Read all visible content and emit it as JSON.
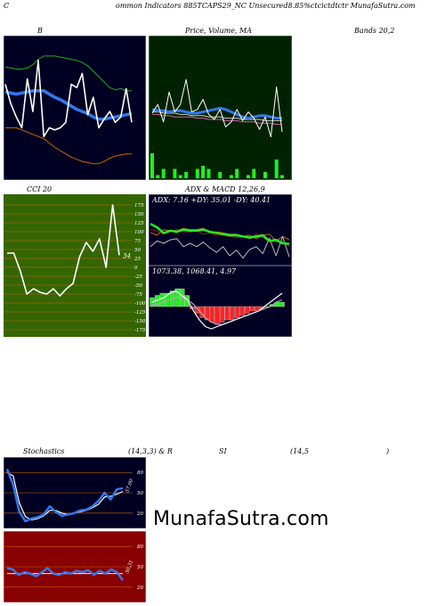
{
  "header": {
    "title": "ommon Indicators 885TCAPS29_NC Unsecured8.85%ctcictdtctr  MunafaSutra.com",
    "left_letter": "C"
  },
  "labels": {
    "bb": "B",
    "pricema": "Price, Volume, MA",
    "bands": "Bands 20,2",
    "cci": "CCI 20",
    "adx": "ADX  & MACD 12,26,9",
    "stoch": "Stochastics",
    "stoch_params": "(14,3,3) & R",
    "rsi": "SI",
    "rsi_params": "(14,5",
    "rsi_paren": ")"
  },
  "watermark": "MunafaSutra.com",
  "colors": {
    "dark_bg": "#000022",
    "green_bg": "#002200",
    "cci_bg": "#336600",
    "rsi_bg": "#880000",
    "blue": "#3377ee",
    "orange": "#cc6600",
    "green_line": "#22aa22",
    "bright_green": "#22ee22",
    "white": "#ffffff"
  },
  "chart_data": [
    {
      "type": "line",
      "name": "bollinger-bands",
      "ylim": [
        0,
        100
      ],
      "series": [
        {
          "name": "upper",
          "values": [
            86,
            85,
            84,
            84,
            85,
            88,
            93,
            96,
            96,
            96,
            95,
            94,
            93,
            92,
            90,
            87,
            82,
            77,
            72,
            67,
            65,
            66,
            64,
            64
          ]
        },
        {
          "name": "middle",
          "values": [
            63,
            62,
            61,
            62,
            63,
            64,
            64,
            64,
            61,
            58,
            56,
            53,
            50,
            47,
            45,
            43,
            40,
            38,
            38,
            39,
            40,
            41,
            42,
            43
          ]
        },
        {
          "name": "lower",
          "values": [
            30,
            30,
            30,
            28,
            26,
            24,
            22,
            20,
            16,
            12,
            9,
            6,
            3,
            1,
            -1,
            -2,
            -3,
            -3,
            -1,
            2,
            4,
            5,
            6,
            6
          ]
        },
        {
          "name": "close",
          "values": [
            70,
            52,
            40,
            30,
            75,
            45,
            92,
            22,
            30,
            28,
            30,
            35,
            70,
            67,
            80,
            42,
            58,
            30,
            38,
            45,
            35,
            40,
            66,
            35
          ]
        }
      ]
    },
    {
      "type": "line",
      "name": "price-volume-ma",
      "ylim": [
        0,
        100
      ],
      "series": [
        {
          "name": "price",
          "values": [
            45,
            52,
            38,
            62,
            46,
            52,
            72,
            46,
            48,
            56,
            44,
            40,
            48,
            34,
            38,
            48,
            39,
            46,
            41,
            32,
            42,
            26,
            66,
            30
          ]
        },
        {
          "name": "ma-blue",
          "values": [
            48,
            47,
            47,
            46,
            47,
            47,
            46,
            45,
            45,
            46,
            47,
            48,
            49,
            48,
            46,
            44,
            42,
            41,
            42,
            43,
            43,
            42,
            41,
            41
          ]
        },
        {
          "name": "ma-pink",
          "values": [
            44,
            44,
            43,
            43,
            42,
            42,
            42,
            42,
            41,
            41,
            40,
            40,
            40,
            39,
            39,
            39,
            38,
            38,
            38,
            37,
            37,
            37,
            36,
            36
          ]
        },
        {
          "name": "ma-white",
          "values": [
            46,
            46,
            45,
            45,
            45,
            44,
            44,
            43,
            43,
            43,
            42,
            42,
            42,
            41,
            41,
            41,
            40,
            40,
            40,
            40,
            39,
            39,
            39,
            39
          ]
        },
        {
          "name": "volume",
          "values": [
            8,
            1,
            3,
            0,
            3,
            1,
            2,
            0,
            3,
            4,
            3,
            0,
            2,
            0,
            1,
            3,
            0,
            1,
            3,
            0,
            2,
            0,
            6,
            1
          ]
        }
      ]
    },
    {
      "type": "line",
      "name": "cci",
      "ylim": [
        -175,
        175
      ],
      "ticks": [
        "175",
        "150",
        "125",
        "100",
        "75",
        "50",
        "25",
        "0",
        "-25",
        "-50",
        "-75",
        "-100",
        "-125",
        "-150",
        "-175"
      ],
      "series": [
        {
          "name": "cci",
          "values": [
            40,
            40,
            -10,
            -75,
            -60,
            -70,
            -75,
            -60,
            -80,
            -60,
            -45,
            30,
            70,
            45,
            80,
            0,
            175,
            34
          ]
        }
      ],
      "last_value": "34"
    },
    {
      "type": "line",
      "name": "adx",
      "series": [
        {
          "name": "adx",
          "values": [
            70,
            64,
            54,
            58,
            56,
            60,
            58,
            58,
            60,
            56,
            54,
            52,
            50,
            50,
            48,
            46,
            48,
            50,
            40,
            42,
            36,
            35
          ]
        },
        {
          "name": "plus-di",
          "values": [
            60,
            58,
            52,
            56,
            60,
            56,
            56,
            58,
            52,
            54,
            50,
            50,
            48,
            46,
            48,
            44,
            52,
            46,
            38,
            38,
            40,
            30
          ]
        },
        {
          "name": "minus-di",
          "values": [
            55,
            50,
            60,
            58,
            58,
            62,
            60,
            60,
            62,
            56,
            56,
            54,
            52,
            52,
            48,
            50,
            44,
            50,
            52,
            40,
            48,
            42
          ]
        },
        {
          "name": "white",
          "values": [
            30,
            40,
            36,
            42,
            44,
            30,
            36,
            30,
            38,
            28,
            20,
            30,
            14,
            24,
            10,
            25,
            30,
            18,
            45,
            14,
            48,
            12
          ]
        }
      ],
      "legend_text": "ADX: 7.16  +DY: 35.01 -DY: 40.41"
    },
    {
      "type": "bar",
      "name": "macd",
      "histogram": [
        4,
        5,
        6,
        6,
        7,
        8,
        8,
        5,
        -1,
        -3,
        -5,
        -6,
        -7,
        -8,
        -7,
        -6,
        -6,
        -5,
        -4,
        -3,
        -2,
        -2,
        -1,
        0,
        1,
        2,
        2
      ],
      "series": [
        {
          "name": "macd",
          "values": [
            2,
            3,
            4,
            6,
            7,
            5,
            3,
            -2,
            -6,
            -9,
            -10,
            -9,
            -8,
            -7,
            -6,
            -5,
            -4,
            -3,
            -2,
            0,
            2,
            4,
            6
          ]
        },
        {
          "name": "signal",
          "values": [
            1,
            1,
            2,
            3,
            4,
            4,
            3,
            1,
            -2,
            -5,
            -7,
            -8,
            -8,
            -7,
            -6,
            -5,
            -4,
            -3,
            -2,
            -1,
            0,
            2,
            3
          ]
        }
      ],
      "legend_text": "1073.38,  1068.41,  4.97"
    },
    {
      "type": "line",
      "name": "stochastics",
      "ylim": [
        0,
        100
      ],
      "ticks": [
        "80",
        "50",
        "20"
      ],
      "series": [
        {
          "name": "%K",
          "values": [
            85,
            62,
            22,
            8,
            12,
            14,
            18,
            30,
            22,
            16,
            18,
            20,
            24,
            25,
            30,
            38,
            50,
            40,
            55,
            57
          ]
        },
        {
          "name": "%D",
          "values": [
            80,
            75,
            35,
            15,
            10,
            12,
            16,
            24,
            24,
            20,
            18,
            20,
            22,
            24,
            28,
            33,
            44,
            45,
            48,
            52
          ]
        }
      ],
      "last_label": "57.00"
    },
    {
      "type": "line",
      "name": "rsi",
      "ylim": [
        0,
        100
      ],
      "ticks": [
        "80",
        "50",
        "20"
      ],
      "series": [
        {
          "name": "rsi",
          "values": [
            48,
            46,
            38,
            42,
            40,
            36,
            42,
            48,
            40,
            38,
            42,
            40,
            44,
            42,
            45,
            38,
            44,
            40,
            46,
            42,
            30
          ]
        },
        {
          "name": "mfi",
          "values": [
            40,
            40,
            40,
            40,
            40,
            40,
            40,
            40,
            40,
            40,
            40,
            40,
            40,
            40,
            40,
            40,
            40,
            40,
            40,
            40,
            40
          ]
        }
      ],
      "last_label": "30.31"
    }
  ]
}
